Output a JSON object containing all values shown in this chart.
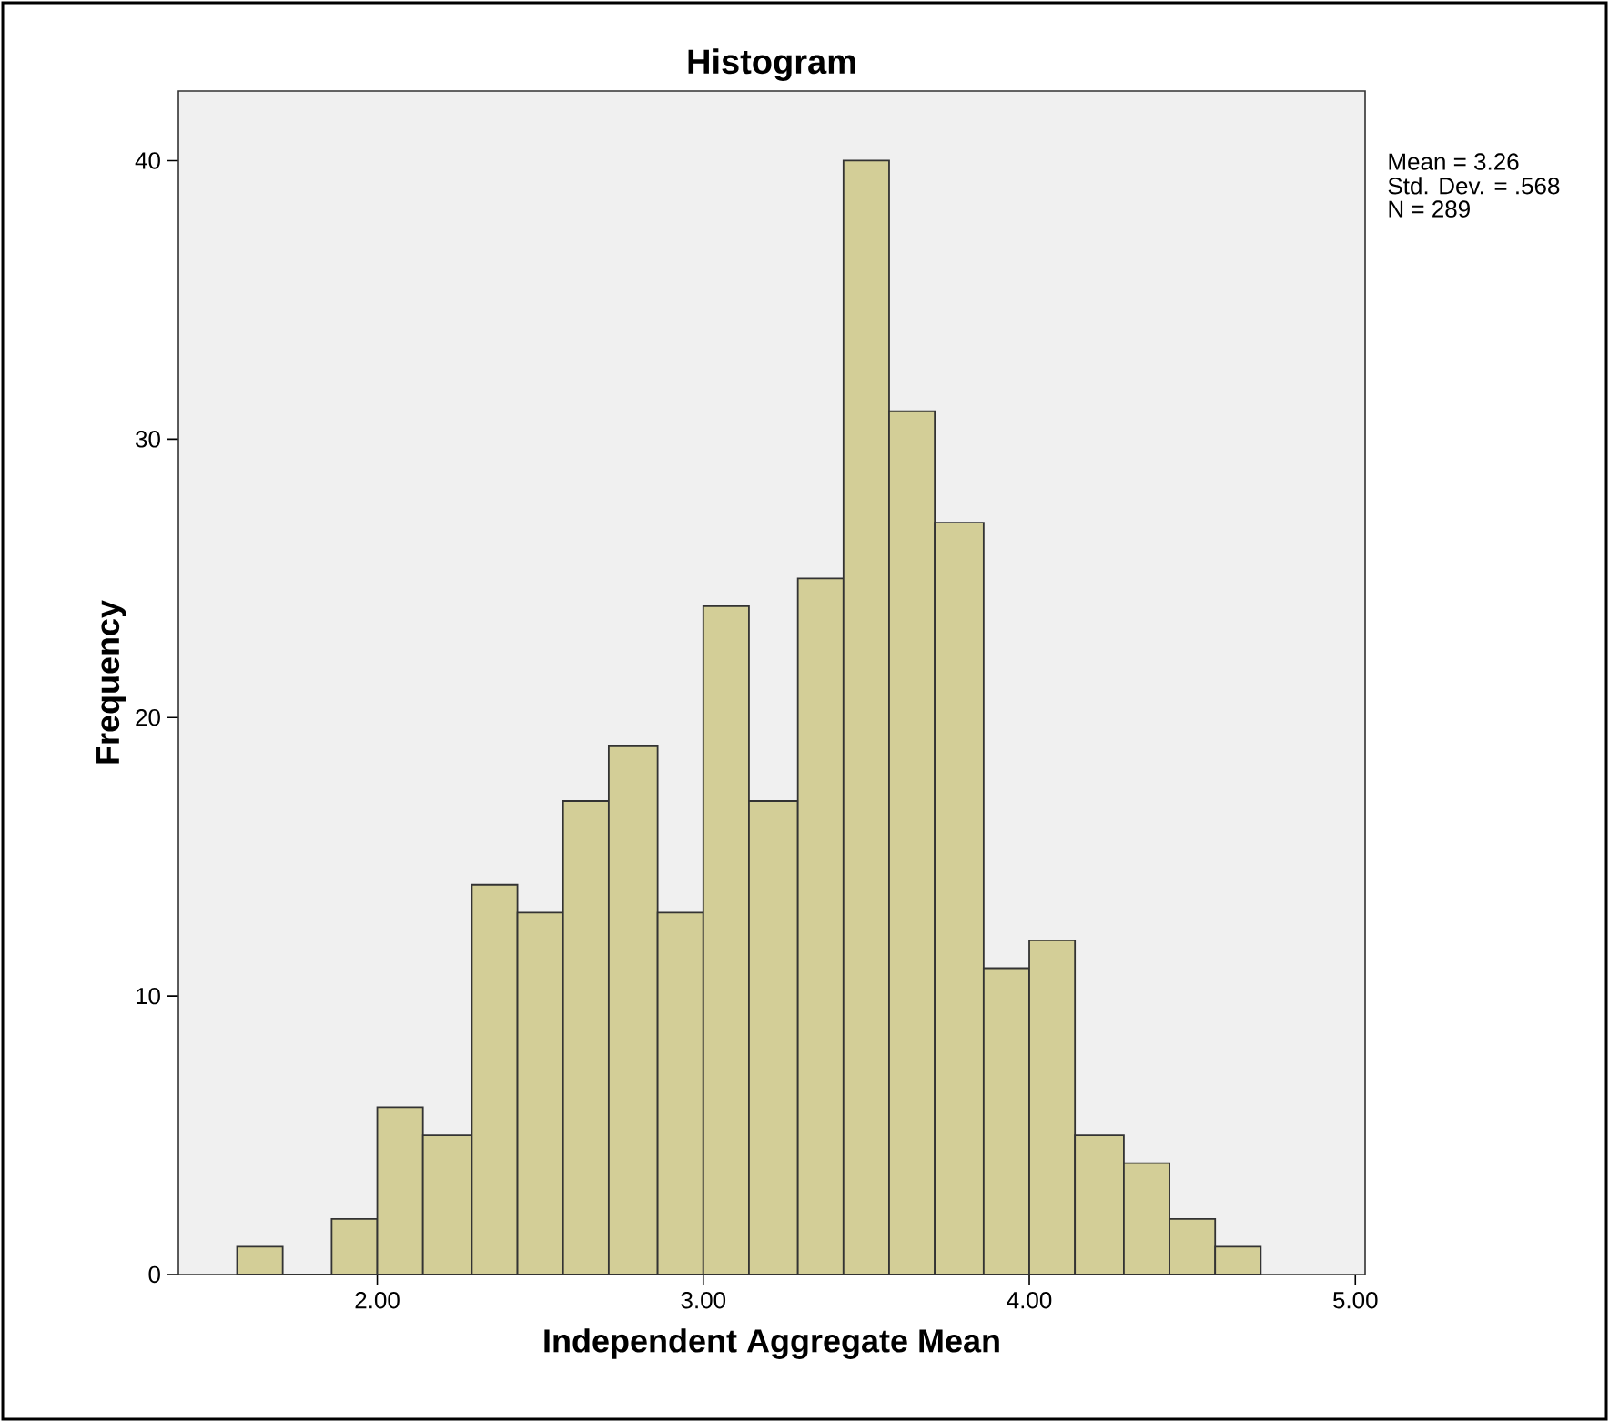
{
  "chart_data": {
    "type": "histogram",
    "title": "Histogram",
    "xlabel": "Independent Aggregate Mean",
    "ylabel": "Frequency",
    "bins": [
      1.57,
      1.71,
      1.86,
      2.0,
      2.14,
      2.29,
      2.43,
      2.57,
      2.71,
      2.86,
      3.0,
      3.14,
      3.29,
      3.43,
      3.57,
      3.71,
      3.86,
      4.0,
      4.14,
      4.29,
      4.43,
      4.57,
      4.71
    ],
    "values": [
      1,
      0,
      2,
      6,
      5,
      14,
      13,
      17,
      19,
      13,
      24,
      17,
      25,
      40,
      31,
      27,
      11,
      12,
      5,
      4,
      2,
      1
    ],
    "color": "#d3ce97",
    "xlim": [
      1.39,
      5.03
    ],
    "ylim": [
      0,
      42.5
    ],
    "xticks": [
      {
        "value": 2,
        "label": "2.00"
      },
      {
        "value": 3,
        "label": "3.00"
      },
      {
        "value": 4,
        "label": "4.00"
      },
      {
        "value": 5,
        "label": "5.00"
      }
    ],
    "yticks": [
      0,
      10,
      20,
      30,
      40
    ],
    "grid": false,
    "annotations": [
      "Mean = 3.26",
      "Std. Dev. = .568",
      "N = 289"
    ]
  }
}
